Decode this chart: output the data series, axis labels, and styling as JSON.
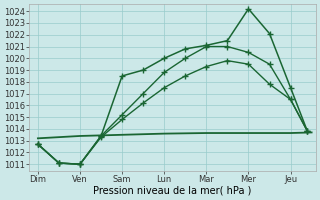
{
  "background_color": "#cce8e8",
  "grid_color": "#99cccc",
  "line_flat": {
    "color": "#1a6633",
    "linewidth": 1.3,
    "linestyle": "-",
    "marker": null,
    "x": [
      0,
      1,
      2,
      3,
      4,
      5,
      6,
      6.5
    ],
    "y": [
      1013.2,
      1013.4,
      1013.5,
      1013.6,
      1013.65,
      1013.65,
      1013.65,
      1013.7
    ]
  },
  "line_low1": {
    "color": "#1a6633",
    "linewidth": 1.0,
    "linestyle": "-",
    "marker": "+",
    "markersize": 4,
    "x": [
      0,
      0.5,
      1.0,
      1.5,
      2.0,
      2.5,
      3.0,
      3.5,
      4.0,
      4.5,
      5.0,
      5.5,
      6.0,
      6.4
    ],
    "y": [
      1012.7,
      1011.1,
      1011.0,
      1013.3,
      1014.8,
      1016.2,
      1017.5,
      1018.5,
      1019.3,
      1019.8,
      1019.5,
      1017.8,
      1016.5,
      1013.8
    ]
  },
  "line_low2": {
    "color": "#1a6633",
    "linewidth": 1.0,
    "linestyle": "-",
    "marker": "+",
    "markersize": 4,
    "x": [
      0,
      0.5,
      1.0,
      1.5,
      2.0,
      2.5,
      3.0,
      3.5,
      4.0,
      4.5,
      5.0,
      5.5,
      6.0,
      6.4
    ],
    "y": [
      1012.7,
      1011.1,
      1011.0,
      1013.4,
      1015.2,
      1017.0,
      1018.8,
      1020.0,
      1021.0,
      1021.0,
      1020.5,
      1019.5,
      1016.5,
      1013.8
    ]
  },
  "line_peak": {
    "color": "#1a6633",
    "linewidth": 1.1,
    "linestyle": "-",
    "marker": "+",
    "markersize": 4,
    "x": [
      0,
      0.5,
      1.0,
      1.5,
      2.0,
      2.5,
      3.0,
      3.5,
      4.0,
      4.5,
      5.0,
      5.5,
      6.0,
      6.4
    ],
    "y": [
      1012.7,
      1011.1,
      1011.0,
      1013.4,
      1018.5,
      1019.0,
      1020.0,
      1020.8,
      1021.1,
      1021.5,
      1024.2,
      1022.1,
      1017.5,
      1013.8
    ]
  },
  "xlabel": "Pression niveau de la mer( hPa )",
  "xtick_labels": [
    "Dim",
    "Ven",
    "Sam",
    "Lun",
    "Mar",
    "Mer",
    "Jeu"
  ],
  "xtick_positions": [
    0,
    1,
    2,
    3,
    4,
    5,
    6
  ],
  "ylim": [
    1010.4,
    1024.6
  ],
  "ytick_min": 1011,
  "ytick_max": 1024,
  "figsize": [
    3.2,
    2.0
  ],
  "dpi": 100
}
